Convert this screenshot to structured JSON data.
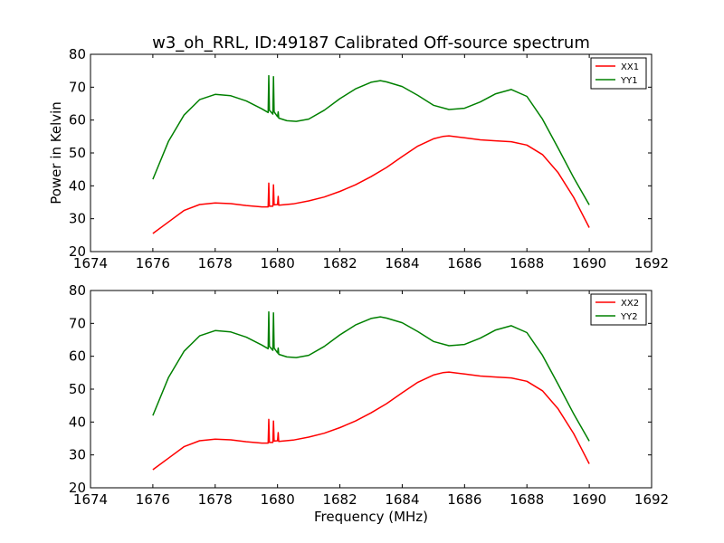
{
  "figure": {
    "title": "w3_oh_RRL, ID:49187 Calibrated Off-source spectrum",
    "xlabel": "Frequency (MHz)",
    "ylabel_top": "Power in Kelvin",
    "ylabel_bottom": ""
  },
  "chart_data": [
    {
      "type": "line",
      "title": "w3_oh_RRL, ID:49187 Calibrated Off-source spectrum",
      "xlabel": "",
      "ylabel": "Power in Kelvin",
      "xlim": [
        1674,
        1692
      ],
      "ylim": [
        20,
        80
      ],
      "x_ticks": [
        "1674",
        "1676",
        "1678",
        "1680",
        "1682",
        "1684",
        "1686",
        "1688",
        "1690",
        "1692"
      ],
      "y_ticks": [
        "20",
        "30",
        "40",
        "50",
        "60",
        "70",
        "80"
      ],
      "grid": false,
      "legend_position": "top-right",
      "series": [
        {
          "name": "XX1",
          "color": "#ff0000",
          "points": [
            [
              1676.0,
              25.5
            ],
            [
              1676.5,
              29.0
            ],
            [
              1677.0,
              32.5
            ],
            [
              1677.5,
              34.3
            ],
            [
              1678.0,
              34.8
            ],
            [
              1678.5,
              34.6
            ],
            [
              1679.0,
              34.0
            ],
            [
              1679.5,
              33.6
            ],
            [
              1679.7,
              33.6
            ],
            [
              1679.72,
              40.8
            ],
            [
              1679.74,
              33.8
            ],
            [
              1679.85,
              33.8
            ],
            [
              1679.87,
              40.3
            ],
            [
              1679.89,
              34.2
            ],
            [
              1680.0,
              34.3
            ],
            [
              1680.02,
              36.8
            ],
            [
              1680.04,
              34.1
            ],
            [
              1680.5,
              34.5
            ],
            [
              1681.0,
              35.4
            ],
            [
              1681.5,
              36.6
            ],
            [
              1682.0,
              38.3
            ],
            [
              1682.5,
              40.3
            ],
            [
              1683.0,
              42.8
            ],
            [
              1683.5,
              45.6
            ],
            [
              1684.0,
              48.9
            ],
            [
              1684.5,
              52.1
            ],
            [
              1685.0,
              54.3
            ],
            [
              1685.3,
              55.0
            ],
            [
              1685.5,
              55.2
            ],
            [
              1686.0,
              54.6
            ],
            [
              1686.5,
              54.0
            ],
            [
              1687.0,
              53.7
            ],
            [
              1687.5,
              53.4
            ],
            [
              1688.0,
              52.4
            ],
            [
              1688.5,
              49.5
            ],
            [
              1689.0,
              44.0
            ],
            [
              1689.5,
              36.5
            ],
            [
              1690.0,
              27.3
            ]
          ]
        },
        {
          "name": "YY1",
          "color": "#008000",
          "points": [
            [
              1676.0,
              42.0
            ],
            [
              1676.5,
              53.5
            ],
            [
              1677.0,
              61.5
            ],
            [
              1677.5,
              66.2
            ],
            [
              1678.0,
              67.8
            ],
            [
              1678.5,
              67.4
            ],
            [
              1679.0,
              65.8
            ],
            [
              1679.5,
              63.4
            ],
            [
              1679.7,
              62.3
            ],
            [
              1679.72,
              73.5
            ],
            [
              1679.74,
              63.0
            ],
            [
              1679.85,
              61.8
            ],
            [
              1679.87,
              73.2
            ],
            [
              1679.89,
              62.5
            ],
            [
              1680.0,
              61.0
            ],
            [
              1680.02,
              62.5
            ],
            [
              1680.04,
              60.6
            ],
            [
              1680.3,
              59.8
            ],
            [
              1680.6,
              59.6
            ],
            [
              1681.0,
              60.3
            ],
            [
              1681.5,
              63.0
            ],
            [
              1682.0,
              66.5
            ],
            [
              1682.5,
              69.5
            ],
            [
              1683.0,
              71.5
            ],
            [
              1683.3,
              72.0
            ],
            [
              1683.5,
              71.6
            ],
            [
              1684.0,
              70.2
            ],
            [
              1684.5,
              67.5
            ],
            [
              1685.0,
              64.5
            ],
            [
              1685.5,
              63.2
            ],
            [
              1686.0,
              63.6
            ],
            [
              1686.5,
              65.5
            ],
            [
              1687.0,
              68.0
            ],
            [
              1687.5,
              69.3
            ],
            [
              1688.0,
              67.2
            ],
            [
              1688.5,
              60.3
            ],
            [
              1689.0,
              51.5
            ],
            [
              1689.5,
              42.5
            ],
            [
              1690.0,
              34.2
            ]
          ]
        }
      ]
    },
    {
      "type": "line",
      "title": "",
      "xlabel": "Frequency (MHz)",
      "ylabel": "",
      "xlim": [
        1674,
        1692
      ],
      "ylim": [
        20,
        80
      ],
      "x_ticks": [
        "1674",
        "1676",
        "1678",
        "1680",
        "1682",
        "1684",
        "1686",
        "1688",
        "1690",
        "1692"
      ],
      "y_ticks": [
        "20",
        "30",
        "40",
        "50",
        "60",
        "70",
        "80"
      ],
      "grid": false,
      "legend_position": "top-right",
      "series": [
        {
          "name": "XX2",
          "color": "#ff0000",
          "points": [
            [
              1676.0,
              25.5
            ],
            [
              1676.5,
              29.0
            ],
            [
              1677.0,
              32.5
            ],
            [
              1677.5,
              34.3
            ],
            [
              1678.0,
              34.8
            ],
            [
              1678.5,
              34.6
            ],
            [
              1679.0,
              34.0
            ],
            [
              1679.5,
              33.6
            ],
            [
              1679.7,
              33.6
            ],
            [
              1679.72,
              40.8
            ],
            [
              1679.74,
              33.8
            ],
            [
              1679.85,
              33.8
            ],
            [
              1679.87,
              40.3
            ],
            [
              1679.89,
              34.2
            ],
            [
              1680.0,
              34.3
            ],
            [
              1680.02,
              36.8
            ],
            [
              1680.04,
              34.1
            ],
            [
              1680.5,
              34.5
            ],
            [
              1681.0,
              35.4
            ],
            [
              1681.5,
              36.6
            ],
            [
              1682.0,
              38.3
            ],
            [
              1682.5,
              40.3
            ],
            [
              1683.0,
              42.8
            ],
            [
              1683.5,
              45.6
            ],
            [
              1684.0,
              48.9
            ],
            [
              1684.5,
              52.1
            ],
            [
              1685.0,
              54.3
            ],
            [
              1685.3,
              55.0
            ],
            [
              1685.5,
              55.2
            ],
            [
              1686.0,
              54.6
            ],
            [
              1686.5,
              54.0
            ],
            [
              1687.0,
              53.7
            ],
            [
              1687.5,
              53.4
            ],
            [
              1688.0,
              52.4
            ],
            [
              1688.5,
              49.5
            ],
            [
              1689.0,
              44.0
            ],
            [
              1689.5,
              36.5
            ],
            [
              1690.0,
              27.3
            ]
          ]
        },
        {
          "name": "YY2",
          "color": "#008000",
          "points": [
            [
              1676.0,
              42.0
            ],
            [
              1676.5,
              53.5
            ],
            [
              1677.0,
              61.5
            ],
            [
              1677.5,
              66.2
            ],
            [
              1678.0,
              67.8
            ],
            [
              1678.5,
              67.4
            ],
            [
              1679.0,
              65.8
            ],
            [
              1679.5,
              63.4
            ],
            [
              1679.7,
              62.3
            ],
            [
              1679.72,
              73.5
            ],
            [
              1679.74,
              63.0
            ],
            [
              1679.85,
              61.8
            ],
            [
              1679.87,
              73.2
            ],
            [
              1679.89,
              62.5
            ],
            [
              1680.0,
              61.0
            ],
            [
              1680.02,
              62.5
            ],
            [
              1680.04,
              60.6
            ],
            [
              1680.3,
              59.8
            ],
            [
              1680.6,
              59.6
            ],
            [
              1681.0,
              60.3
            ],
            [
              1681.5,
              63.0
            ],
            [
              1682.0,
              66.5
            ],
            [
              1682.5,
              69.5
            ],
            [
              1683.0,
              71.5
            ],
            [
              1683.3,
              72.0
            ],
            [
              1683.5,
              71.6
            ],
            [
              1684.0,
              70.2
            ],
            [
              1684.5,
              67.5
            ],
            [
              1685.0,
              64.5
            ],
            [
              1685.5,
              63.2
            ],
            [
              1686.0,
              63.6
            ],
            [
              1686.5,
              65.5
            ],
            [
              1687.0,
              68.0
            ],
            [
              1687.5,
              69.3
            ],
            [
              1688.0,
              67.2
            ],
            [
              1688.5,
              60.3
            ],
            [
              1689.0,
              51.5
            ],
            [
              1689.5,
              42.5
            ],
            [
              1690.0,
              34.2
            ]
          ]
        }
      ]
    }
  ]
}
